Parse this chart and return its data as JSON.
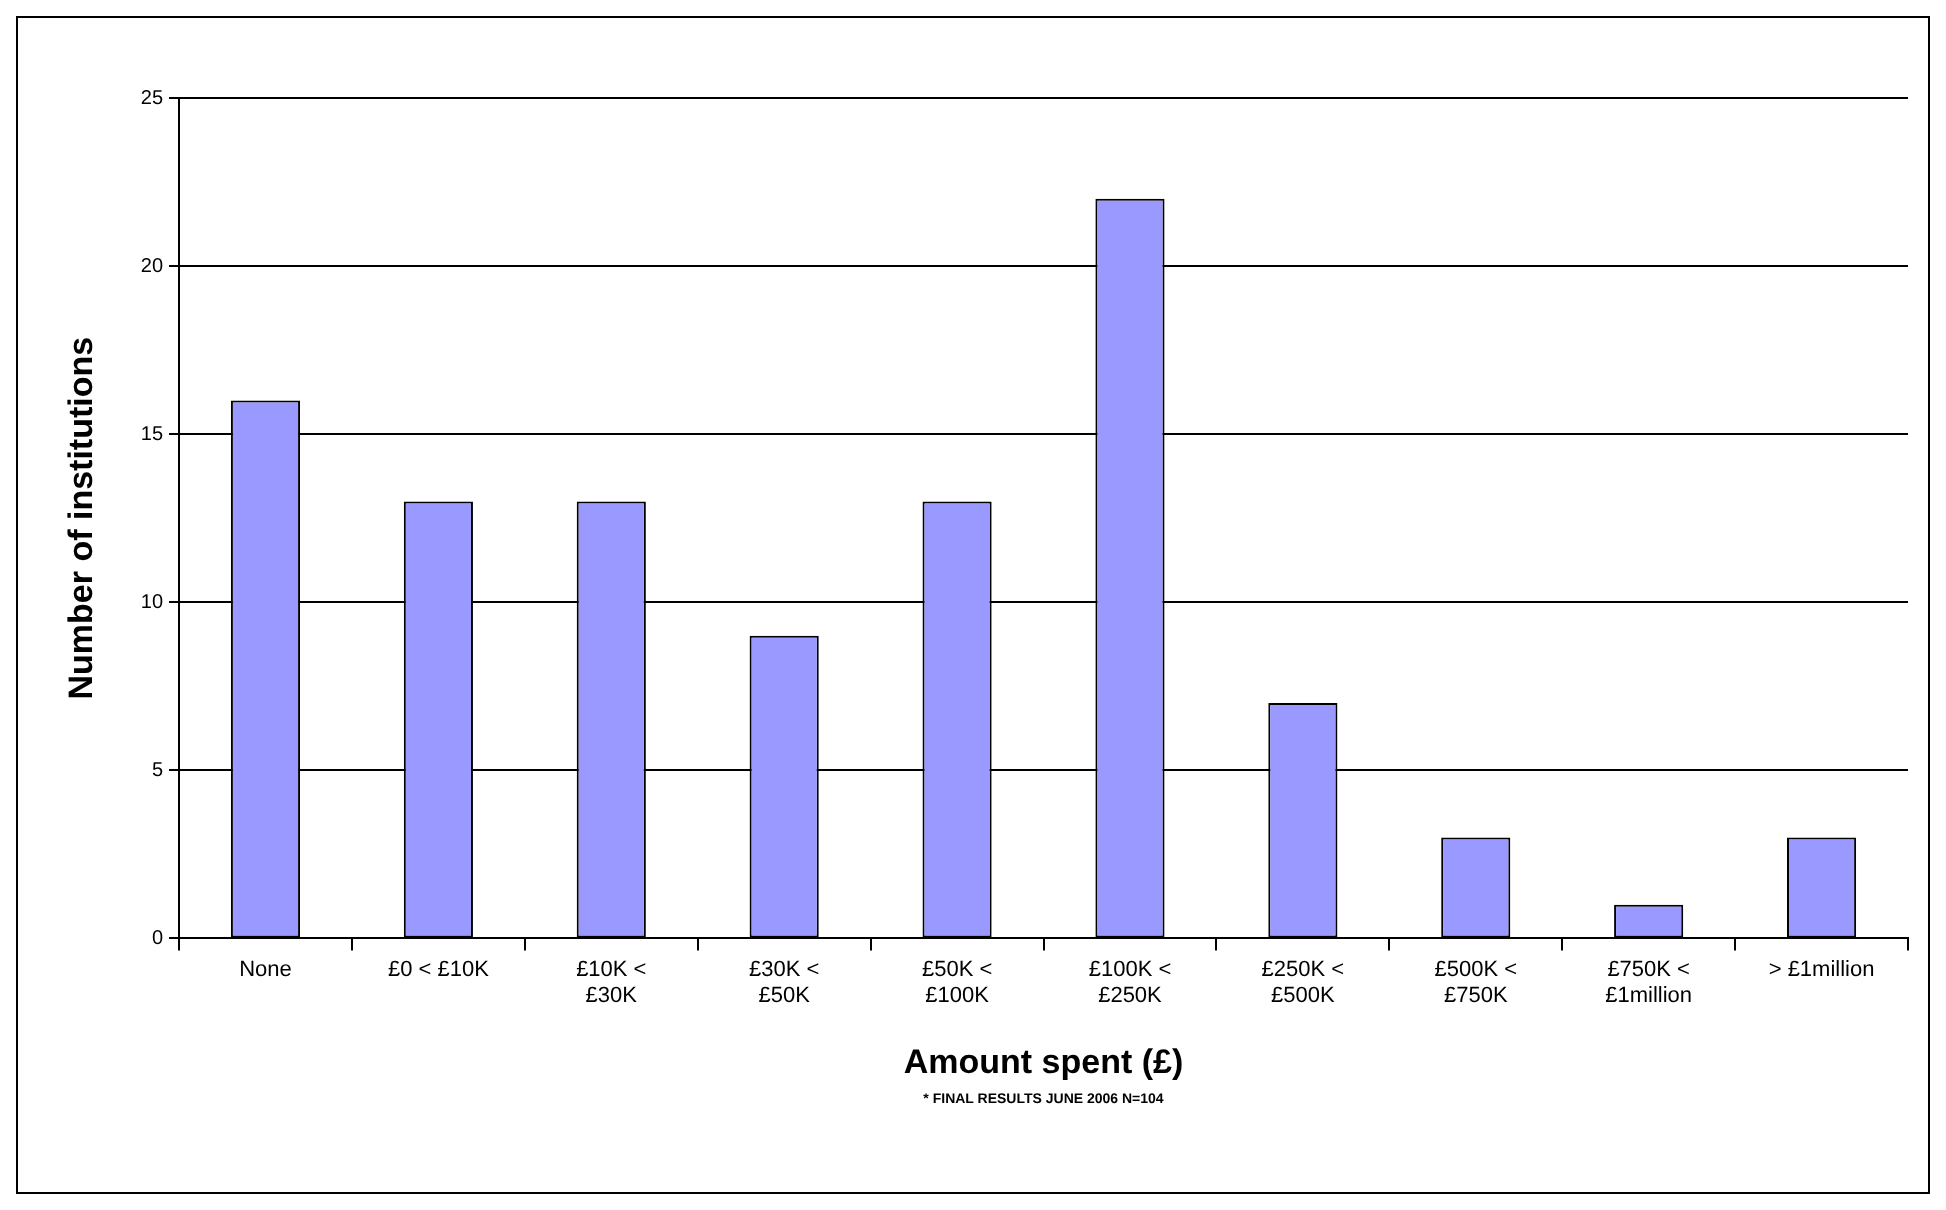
{
  "chart_data": {
    "type": "bar",
    "xlabel": "Amount spent (£)",
    "ylabel": "Number of institutions",
    "categories": [
      "None",
      "£0 < £10K",
      "£10K < £30K",
      "£30K < £50K",
      "£50K < £100K",
      "£100K < £250K",
      "£250K < £500K",
      "£500K < £750K",
      "£750K < £1million",
      "> £1million"
    ],
    "values": [
      16,
      13,
      13,
      9,
      13,
      22,
      7,
      3,
      1,
      3
    ],
    "color": "#9999ff",
    "ylim": [
      0,
      25
    ],
    "yticks": [
      0,
      5,
      10,
      15,
      20,
      25
    ],
    "grid": "y",
    "legend": false,
    "annotations": [
      "* FINAL RESULTS JUNE 2006 N=104"
    ]
  }
}
